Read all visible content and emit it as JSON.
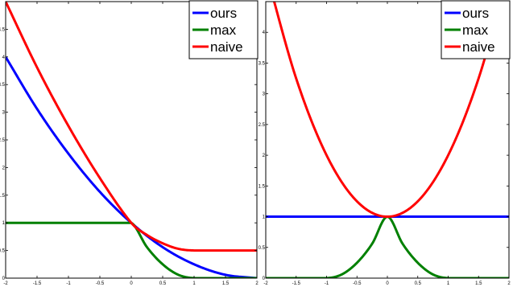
{
  "chart_data": [
    {
      "type": "line",
      "xlim": [
        -2,
        2
      ],
      "ylim": [
        0,
        5
      ],
      "xticks": [
        "-2",
        "-1.5",
        "-1",
        "-0.5",
        "0",
        "0.5",
        "1",
        "1.5",
        "2"
      ],
      "yticks": [
        "0",
        "0.5",
        "1",
        "1.5",
        "2",
        "2.5",
        "3",
        "3.5",
        "4",
        "4.5"
      ],
      "legend_position": "top-right",
      "series": [
        {
          "name": "ours",
          "color": "#0000ff",
          "x": [
            -2,
            -1.5,
            -1,
            -0.5,
            0,
            0.5,
            1,
            1.5,
            2
          ],
          "y": [
            4,
            3.06,
            2.25,
            1.56,
            1,
            0.56,
            0.25,
            0.06,
            0
          ]
        },
        {
          "name": "max",
          "color": "#008000",
          "x": [
            -2,
            -1.5,
            -1,
            -0.5,
            0,
            0.25,
            0.5,
            0.75,
            1,
            1.5,
            2
          ],
          "y": [
            1,
            1,
            1,
            1,
            1,
            0.56,
            0.25,
            0.06,
            0,
            0,
            0
          ]
        },
        {
          "name": "naive",
          "color": "#ff0000",
          "x": [
            -2,
            -1.5,
            -1,
            -0.5,
            0,
            0.25,
            0.5,
            0.75,
            1,
            1.5,
            2
          ],
          "y": [
            5,
            3.81,
            2.75,
            1.81,
            1,
            0.78,
            0.63,
            0.53,
            0.5,
            0.5,
            0.5
          ]
        }
      ]
    },
    {
      "type": "line",
      "xlim": [
        -2,
        2
      ],
      "ylim": [
        0,
        4.5
      ],
      "xticks": [
        "-2",
        "-1.5",
        "-1",
        "-0.5",
        "0",
        "0.5",
        "1",
        "1.5",
        "2"
      ],
      "yticks": [
        "0",
        "0.5",
        "1",
        "1.5",
        "2",
        "2.5",
        "3",
        "3.5",
        "4"
      ],
      "legend_position": "top-right",
      "series": [
        {
          "name": "ours",
          "color": "#0000ff",
          "x": [
            -2,
            2
          ],
          "y": [
            1,
            1
          ]
        },
        {
          "name": "max",
          "color": "#008000",
          "x": [
            -2,
            -1.5,
            -1,
            -0.75,
            -0.5,
            -0.25,
            0,
            0.25,
            0.5,
            0.75,
            1,
            1.5,
            2
          ],
          "y": [
            0,
            0,
            0,
            0.06,
            0.25,
            0.56,
            1,
            0.56,
            0.25,
            0.06,
            0,
            0,
            0
          ]
        },
        {
          "name": "naive",
          "color": "#ff0000",
          "x": [
            -2,
            -1.5,
            -1,
            -0.5,
            0,
            0.5,
            1,
            1.5,
            2
          ],
          "y": [
            5,
            3.25,
            2,
            1.25,
            1,
            1.25,
            2,
            3.25,
            5
          ]
        }
      ]
    }
  ]
}
